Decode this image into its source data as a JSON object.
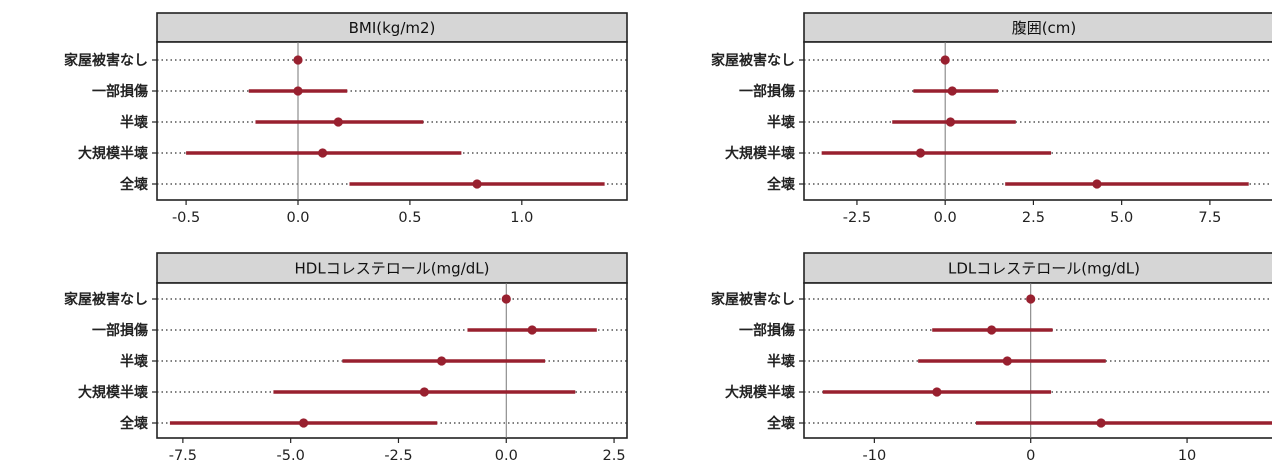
{
  "colors": {
    "estimate": "#98202f",
    "header_bg": "#d6d6d6",
    "frame": "#222222",
    "zero_line": "#777777",
    "dotted": "#333333"
  },
  "chart_data": [
    {
      "type": "forest",
      "title": "BMI(kg/m2)",
      "categories": [
        "家屋被害なし",
        "一部損傷",
        "半壊",
        "大規模半壊",
        "全壊"
      ],
      "estimates": [
        0.0,
        0.0,
        0.18,
        0.11,
        0.8
      ],
      "ci_lower": [
        0.0,
        -0.22,
        -0.19,
        -0.5,
        0.23
      ],
      "ci_upper": [
        0.0,
        0.22,
        0.56,
        0.73,
        1.37
      ],
      "xlim": [
        -0.63,
        1.47
      ],
      "xticks": [
        "-0.5",
        "0.0",
        "0.5",
        "1.0"
      ],
      "reference_line": 0,
      "grid": "dotted horizontal"
    },
    {
      "type": "forest",
      "title": "腹囲(cm)",
      "categories": [
        "家屋被害なし",
        "一部損傷",
        "半壊",
        "大規模半壊",
        "全壊"
      ],
      "estimates": [
        0.0,
        0.2,
        0.15,
        -0.7,
        4.3
      ],
      "ci_lower": [
        0.0,
        -0.9,
        -1.5,
        -3.5,
        1.7
      ],
      "ci_upper": [
        0.0,
        1.5,
        2.0,
        3.0,
        8.6
      ],
      "xlim": [
        -4.0,
        9.6
      ],
      "xticks": [
        "-2.5",
        "0.0",
        "2.5",
        "5.0",
        "7.5"
      ],
      "reference_line": 0,
      "grid": "dotted horizontal"
    },
    {
      "type": "forest",
      "title": "HDLコレステロール(mg/dL)",
      "categories": [
        "家屋被害なし",
        "一部損傷",
        "半壊",
        "大規模半壊",
        "全壊"
      ],
      "estimates": [
        0.0,
        0.6,
        -1.5,
        -1.9,
        -4.7
      ],
      "ci_lower": [
        0.0,
        -0.9,
        -3.8,
        -5.4,
        -7.8
      ],
      "ci_upper": [
        0.0,
        2.1,
        0.9,
        1.6,
        -1.6
      ],
      "xlim": [
        -8.1,
        2.8
      ],
      "xticks": [
        "-7.5",
        "-5.0",
        "-2.5",
        "0.0",
        "2.5"
      ],
      "reference_line": 0,
      "grid": "dotted horizontal"
    },
    {
      "type": "forest",
      "title": "LDLコレステロール(mg/dL)",
      "categories": [
        "家屋被害なし",
        "一部損傷",
        "半壊",
        "大規模半壊",
        "全壊"
      ],
      "estimates": [
        0.0,
        -2.5,
        -1.5,
        -6.0,
        4.5
      ],
      "ci_lower": [
        0.0,
        -6.3,
        -7.2,
        -13.3,
        -3.5
      ],
      "ci_upper": [
        0.0,
        1.4,
        4.8,
        1.3,
        15.5
      ],
      "xlim": [
        -14.5,
        16.2
      ],
      "xticks": [
        "-10",
        "0",
        "10"
      ],
      "reference_line": 0,
      "grid": "dotted horizontal"
    }
  ]
}
